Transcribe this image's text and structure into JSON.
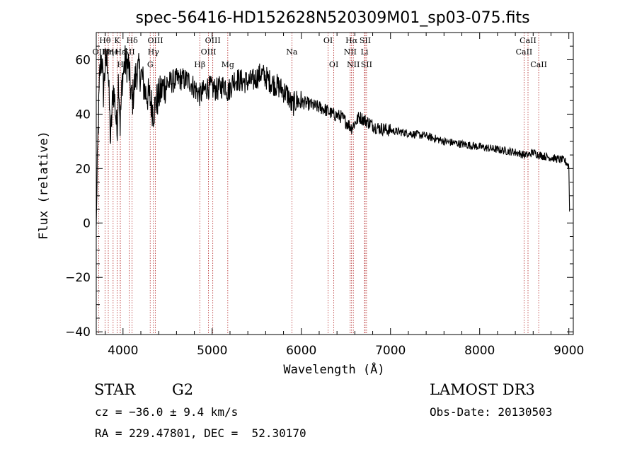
{
  "chart_data": {
    "type": "line",
    "title": "spec-56416-HD152628N520309M01_sp03-075.fits",
    "xlabel": "Wavelength (Å)",
    "ylabel": "Flux (relative)",
    "xlim": [
      3700,
      9050
    ],
    "ylim": [
      -41,
      70
    ],
    "x_ticks": [
      4000,
      5000,
      6000,
      7000,
      8000,
      9000
    ],
    "y_ticks": [
      -40,
      -20,
      0,
      20,
      40,
      60
    ],
    "x_tick_labels": [
      "4000",
      "5000",
      "6000",
      "7000",
      "8000",
      "9000"
    ],
    "y_tick_labels": [
      "−40",
      "−20",
      "0",
      "20",
      "40",
      "60"
    ],
    "spectrum_anchors": {
      "x": [
        3700,
        3720,
        3740,
        3760,
        3780,
        3800,
        3830,
        3860,
        3890,
        3910,
        3933,
        3950,
        3968,
        3990,
        4020,
        4060,
        4101,
        4150,
        4200,
        4250,
        4300,
        4340,
        4380,
        4450,
        4550,
        4650,
        4750,
        4861,
        4950,
        5050,
        5150,
        5175,
        5250,
        5350,
        5450,
        5550,
        5650,
        5750,
        5850,
        5893,
        5950,
        6050,
        6150,
        6250,
        6350,
        6450,
        6563,
        6650,
        6750,
        6850,
        7000,
        7200,
        7400,
        7600,
        7800,
        8000,
        8200,
        8400,
        8500,
        8542,
        8600,
        8662,
        8800,
        8950,
        9000,
        9010
      ],
      "y": [
        -1,
        33,
        55,
        62,
        48,
        58,
        60,
        30,
        50,
        44,
        33,
        55,
        36,
        52,
        59,
        58,
        44,
        56,
        55,
        48,
        46,
        41,
        45,
        50,
        52,
        53,
        52,
        47,
        50,
        49,
        51,
        48,
        53,
        52,
        52,
        55,
        52,
        50,
        47,
        43,
        45,
        44,
        43,
        42,
        40,
        39,
        35,
        39,
        37,
        35,
        34,
        33,
        32,
        30,
        29,
        28,
        27,
        26,
        25,
        25,
        26,
        25,
        24,
        23,
        21,
        0
      ]
    },
    "line_markers": [
      {
        "label": "Hθ",
        "wavelength": 3798,
        "row": 1
      },
      {
        "label": "OII",
        "wavelength": 3727,
        "row": 2
      },
      {
        "label": "Hη",
        "wavelength": 3835,
        "row": 2
      },
      {
        "label": "He",
        "wavelength": 3889,
        "row": 2
      },
      {
        "label": "K",
        "wavelength": 3934,
        "row": 1
      },
      {
        "label": "H",
        "wavelength": 3969,
        "row": 3
      },
      {
        "label": "Hε",
        "wavelength": 3970,
        "row": 2
      },
      {
        "label": "SII",
        "wavelength": 4070,
        "row": 2
      },
      {
        "label": "Hδ",
        "wavelength": 4102,
        "row": 1
      },
      {
        "label": "OIII",
        "wavelength": 4363,
        "row": 1
      },
      {
        "label": "Hγ",
        "wavelength": 4341,
        "row": 2
      },
      {
        "label": "G",
        "wavelength": 4305,
        "row": 3
      },
      {
        "label": "Hβ",
        "wavelength": 4861,
        "row": 3
      },
      {
        "label": "OIII",
        "wavelength": 4959,
        "row": 2
      },
      {
        "label": "OIII",
        "wavelength": 5007,
        "row": 1
      },
      {
        "label": "Mg",
        "wavelength": 5175,
        "row": 3
      },
      {
        "label": "Na",
        "wavelength": 5894,
        "row": 2
      },
      {
        "label": "OI",
        "wavelength": 6300,
        "row": 1
      },
      {
        "label": "OI",
        "wavelength": 6364,
        "row": 3
      },
      {
        "label": "NII",
        "wavelength": 6548,
        "row": 2
      },
      {
        "label": "Hα",
        "wavelength": 6563,
        "row": 1
      },
      {
        "label": "NII",
        "wavelength": 6583,
        "row": 3
      },
      {
        "label": "SII",
        "wavelength": 6716,
        "row": 1
      },
      {
        "label": "Li",
        "wavelength": 6708,
        "row": 2
      },
      {
        "label": "SII",
        "wavelength": 6731,
        "row": 3
      },
      {
        "label": "CaII",
        "wavelength": 8498,
        "row": 2
      },
      {
        "label": "CaII",
        "wavelength": 8542,
        "row": 1
      },
      {
        "label": "CaII",
        "wavelength": 8662,
        "row": 3
      }
    ],
    "colors": {
      "spectrum": "#000000",
      "markers": "#b22222",
      "axes": "#000000"
    }
  },
  "info": {
    "object_class": "STAR",
    "subclass": "G2",
    "redshift": "cz = −36.0 ± 9.4 km/s",
    "coordinates": "RA = 229.47801, DEC =  52.30170",
    "survey": "LAMOST DR3",
    "obs_date": "Obs-Date: 20130503"
  }
}
